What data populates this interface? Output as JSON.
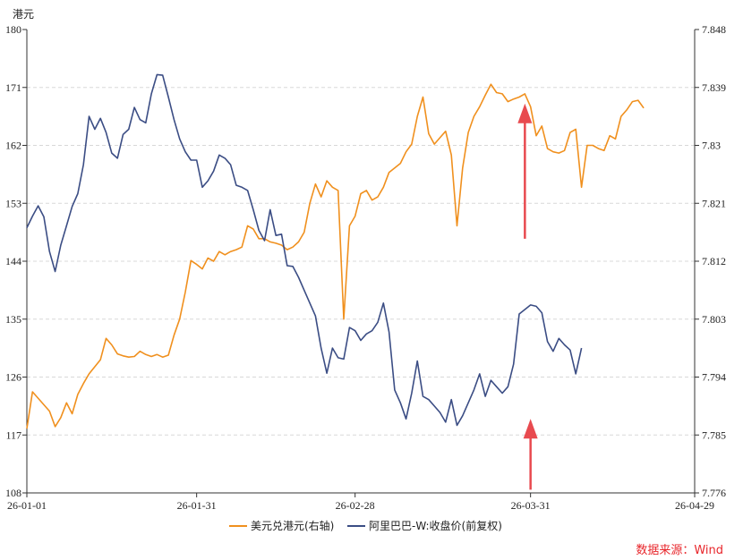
{
  "chart_data": {
    "type": "line",
    "y_left_label": "港元",
    "y_left_range": [
      108,
      180
    ],
    "y_left_ticks": [
      "108",
      "117",
      "126",
      "135",
      "144",
      "153",
      "162",
      "171",
      "180"
    ],
    "y_right_range": [
      7.776,
      7.848
    ],
    "y_right_ticks": [
      "7.776",
      "7.785",
      "7.794",
      "7.803",
      "7.812",
      "7.821",
      "7.83",
      "7.839",
      "7.848"
    ],
    "x_range": [
      "2026-01-01",
      "2026-04-29"
    ],
    "x_tick_dates": [
      "2026-01-01",
      "2026-01-31",
      "2026-02-28",
      "2026-03-31",
      "2026-04-29"
    ],
    "x_ticks": [
      "26-01-01",
      "26-01-31",
      "26-02-28",
      "26-03-31",
      "26-04-29"
    ],
    "grid": "horizontal-dashed",
    "legend_position": "bottom",
    "series": [
      {
        "name": "美元兑港元(右轴)",
        "axis": "right",
        "color": "#f0901e",
        "points": [
          [
            "2026-01-01",
            7.786
          ],
          [
            "2026-01-02",
            7.7917
          ],
          [
            "2026-01-05",
            7.7887
          ],
          [
            "2026-01-06",
            7.7863
          ],
          [
            "2026-01-07",
            7.7877
          ],
          [
            "2026-01-08",
            7.79
          ],
          [
            "2026-01-09",
            7.7883
          ],
          [
            "2026-01-10",
            7.7913
          ],
          [
            "2026-01-11",
            7.793
          ],
          [
            "2026-01-12",
            7.7945
          ],
          [
            "2026-01-14",
            7.7967
          ],
          [
            "2026-01-15",
            7.8
          ],
          [
            "2026-01-16",
            7.799
          ],
          [
            "2026-01-17",
            7.7976
          ],
          [
            "2026-01-18",
            7.7973
          ],
          [
            "2026-01-19",
            7.7971
          ],
          [
            "2026-01-20",
            7.7972
          ],
          [
            "2026-01-21",
            7.798
          ],
          [
            "2026-01-22",
            7.7975
          ],
          [
            "2026-01-23",
            7.7972
          ],
          [
            "2026-01-24",
            7.7975
          ],
          [
            "2026-01-25",
            7.7971
          ],
          [
            "2026-01-26",
            7.7974
          ],
          [
            "2026-01-27",
            7.8005
          ],
          [
            "2026-01-28",
            7.803
          ],
          [
            "2026-01-29",
            7.8072
          ],
          [
            "2026-01-30",
            7.8121
          ],
          [
            "2026-01-31",
            7.8115
          ],
          [
            "2026-02-01",
            7.8108
          ],
          [
            "2026-02-02",
            7.8125
          ],
          [
            "2026-02-03",
            7.812
          ],
          [
            "2026-02-04",
            7.8135
          ],
          [
            "2026-02-05",
            7.813
          ],
          [
            "2026-02-06",
            7.8135
          ],
          [
            "2026-02-07",
            7.8138
          ],
          [
            "2026-02-08",
            7.8142
          ],
          [
            "2026-02-09",
            7.8175
          ],
          [
            "2026-02-10",
            7.817
          ],
          [
            "2026-02-11",
            7.8155
          ],
          [
            "2026-02-12",
            7.8155
          ],
          [
            "2026-02-13",
            7.815
          ],
          [
            "2026-02-14",
            7.8148
          ],
          [
            "2026-02-15",
            7.8145
          ],
          [
            "2026-02-16",
            7.8138
          ],
          [
            "2026-02-17",
            7.8142
          ],
          [
            "2026-02-18",
            7.815
          ],
          [
            "2026-02-19",
            7.8165
          ],
          [
            "2026-02-20",
            7.821
          ],
          [
            "2026-02-21",
            7.824
          ],
          [
            "2026-02-22",
            7.822
          ],
          [
            "2026-02-23",
            7.8245
          ],
          [
            "2026-02-24",
            7.8235
          ],
          [
            "2026-02-25",
            7.823
          ],
          [
            "2026-02-26",
            7.803
          ],
          [
            "2026-02-27",
            7.8175
          ],
          [
            "2026-02-28",
            7.819
          ],
          [
            "2026-03-01",
            7.8225
          ],
          [
            "2026-03-02",
            7.823
          ],
          [
            "2026-03-03",
            7.8215
          ],
          [
            "2026-03-04",
            7.822
          ],
          [
            "2026-03-05",
            7.8235
          ],
          [
            "2026-03-06",
            7.8258
          ],
          [
            "2026-03-07",
            7.8265
          ],
          [
            "2026-03-08",
            7.8272
          ],
          [
            "2026-03-09",
            7.829
          ],
          [
            "2026-03-10",
            7.8302
          ],
          [
            "2026-03-11",
            7.8345
          ],
          [
            "2026-03-12",
            7.8375
          ],
          [
            "2026-03-13",
            7.8318
          ],
          [
            "2026-03-14",
            7.8302
          ],
          [
            "2026-03-15",
            7.8312
          ],
          [
            "2026-03-16",
            7.8322
          ],
          [
            "2026-03-17",
            7.8285
          ],
          [
            "2026-03-18",
            7.8175
          ],
          [
            "2026-03-19",
            7.8265
          ],
          [
            "2026-03-20",
            7.832
          ],
          [
            "2026-03-21",
            7.8345
          ],
          [
            "2026-03-22",
            7.836
          ],
          [
            "2026-03-23",
            7.8378
          ],
          [
            "2026-03-24",
            7.8395
          ],
          [
            "2026-03-25",
            7.8382
          ],
          [
            "2026-03-26",
            7.838
          ],
          [
            "2026-03-27",
            7.8368
          ],
          [
            "2026-03-28",
            7.8372
          ],
          [
            "2026-03-29",
            7.8375
          ],
          [
            "2026-03-30",
            7.838
          ],
          [
            "2026-03-31",
            7.836
          ],
          [
            "2026-04-01",
            7.8315
          ],
          [
            "2026-04-02",
            7.833
          ],
          [
            "2026-04-03",
            7.8295
          ],
          [
            "2026-04-04",
            7.829
          ],
          [
            "2026-04-05",
            7.8288
          ],
          [
            "2026-04-06",
            7.8292
          ],
          [
            "2026-04-07",
            7.832
          ],
          [
            "2026-04-08",
            7.8325
          ],
          [
            "2026-04-09",
            7.8235
          ],
          [
            "2026-04-10",
            7.83
          ],
          [
            "2026-04-11",
            7.83
          ],
          [
            "2026-04-12",
            7.8295
          ],
          [
            "2026-04-13",
            7.8292
          ],
          [
            "2026-04-14",
            7.8315
          ],
          [
            "2026-04-15",
            7.831
          ],
          [
            "2026-04-16",
            7.8345
          ],
          [
            "2026-04-17",
            7.8355
          ],
          [
            "2026-04-18",
            7.8368
          ],
          [
            "2026-04-19",
            7.837
          ],
          [
            "2026-04-20",
            7.8358
          ]
        ]
      },
      {
        "name": "阿里巴巴-W:收盘价(前复权)",
        "axis": "left",
        "color": "#3b4d84",
        "points": [
          [
            "2026-01-01",
            149.2
          ],
          [
            "2026-01-02",
            151
          ],
          [
            "2026-01-03",
            152.6
          ],
          [
            "2026-01-04",
            150.9
          ],
          [
            "2026-01-05",
            145.5
          ],
          [
            "2026-01-06",
            142.4
          ],
          [
            "2026-01-07",
            146.5
          ],
          [
            "2026-01-08",
            149.5
          ],
          [
            "2026-01-09",
            152.5
          ],
          [
            "2026-01-10",
            154.5
          ],
          [
            "2026-01-11",
            159
          ],
          [
            "2026-01-12",
            166.5
          ],
          [
            "2026-01-13",
            164.5
          ],
          [
            "2026-01-14",
            166.2
          ],
          [
            "2026-01-15",
            164
          ],
          [
            "2026-01-16",
            160.8
          ],
          [
            "2026-01-17",
            160
          ],
          [
            "2026-01-18",
            163.7
          ],
          [
            "2026-01-19",
            164.5
          ],
          [
            "2026-01-20",
            167.9
          ],
          [
            "2026-01-21",
            166
          ],
          [
            "2026-01-22",
            165.5
          ],
          [
            "2026-01-23",
            170
          ],
          [
            "2026-01-24",
            173
          ],
          [
            "2026-01-25",
            172.9
          ],
          [
            "2026-01-26",
            169.5
          ],
          [
            "2026-01-27",
            166
          ],
          [
            "2026-01-28",
            163
          ],
          [
            "2026-01-29",
            161
          ],
          [
            "2026-01-30",
            159.7
          ],
          [
            "2026-01-31",
            159.7
          ],
          [
            "2026-02-01",
            155.5
          ],
          [
            "2026-02-02",
            156.5
          ],
          [
            "2026-02-03",
            158
          ],
          [
            "2026-02-04",
            160.5
          ],
          [
            "2026-02-05",
            160
          ],
          [
            "2026-02-06",
            159
          ],
          [
            "2026-02-07",
            155.8
          ],
          [
            "2026-02-08",
            155.5
          ],
          [
            "2026-02-09",
            155
          ],
          [
            "2026-02-10",
            152
          ],
          [
            "2026-02-11",
            148.8
          ],
          [
            "2026-02-12",
            147.2
          ],
          [
            "2026-02-13",
            152
          ],
          [
            "2026-02-14",
            148
          ],
          [
            "2026-02-15",
            148.2
          ],
          [
            "2026-02-16",
            143.3
          ],
          [
            "2026-02-17",
            143.2
          ],
          [
            "2026-02-18",
            141.5
          ],
          [
            "2026-02-19",
            139.5
          ],
          [
            "2026-02-20",
            137.5
          ],
          [
            "2026-02-21",
            135.5
          ],
          [
            "2026-02-22",
            130.5
          ],
          [
            "2026-02-23",
            126.6
          ],
          [
            "2026-02-24",
            130.5
          ],
          [
            "2026-02-25",
            129
          ],
          [
            "2026-02-26",
            128.8
          ],
          [
            "2026-02-27",
            133.7
          ],
          [
            "2026-02-28",
            133.2
          ],
          [
            "2026-03-01",
            131.7
          ],
          [
            "2026-03-02",
            132.7
          ],
          [
            "2026-03-03",
            133.2
          ],
          [
            "2026-03-04",
            134.5
          ],
          [
            "2026-03-05",
            137.5
          ],
          [
            "2026-03-06",
            133
          ],
          [
            "2026-03-07",
            124
          ],
          [
            "2026-03-08",
            122
          ],
          [
            "2026-03-09",
            119.5
          ],
          [
            "2026-03-10",
            123.5
          ],
          [
            "2026-03-11",
            128.5
          ],
          [
            "2026-03-12",
            123
          ],
          [
            "2026-03-13",
            122.5
          ],
          [
            "2026-03-14",
            121.5
          ],
          [
            "2026-03-15",
            120.5
          ],
          [
            "2026-03-16",
            119
          ],
          [
            "2026-03-17",
            122.5
          ],
          [
            "2026-03-18",
            118.5
          ],
          [
            "2026-03-19",
            120
          ],
          [
            "2026-03-20",
            122
          ],
          [
            "2026-03-21",
            124
          ],
          [
            "2026-03-22",
            126.5
          ],
          [
            "2026-03-23",
            123
          ],
          [
            "2026-03-24",
            125.5
          ],
          [
            "2026-03-25",
            124.5
          ],
          [
            "2026-03-26",
            123.5
          ],
          [
            "2026-03-27",
            124.5
          ],
          [
            "2026-03-28",
            128
          ],
          [
            "2026-03-29",
            135.8
          ],
          [
            "2026-03-30",
            136.5
          ],
          [
            "2026-03-31",
            137.2
          ],
          [
            "2026-04-01",
            137
          ],
          [
            "2026-04-02",
            136
          ],
          [
            "2026-04-03",
            131.5
          ],
          [
            "2026-04-04",
            130
          ],
          [
            "2026-04-05",
            132
          ],
          [
            "2026-04-06",
            131
          ],
          [
            "2026-04-07",
            130.2
          ],
          [
            "2026-04-08",
            126.5
          ],
          [
            "2026-04-09",
            130.5
          ]
        ]
      }
    ],
    "annotations": [
      {
        "type": "arrow",
        "color": "#e84a4f",
        "date": "2026-03-30",
        "y_axis": "right",
        "from": 7.8155,
        "to": 7.8365
      },
      {
        "type": "arrow",
        "color": "#e84a4f",
        "date": "2026-03-31",
        "y_axis": "left",
        "from": 108.5,
        "to": 119.5
      }
    ]
  },
  "source_note": "数据来源：Wind"
}
